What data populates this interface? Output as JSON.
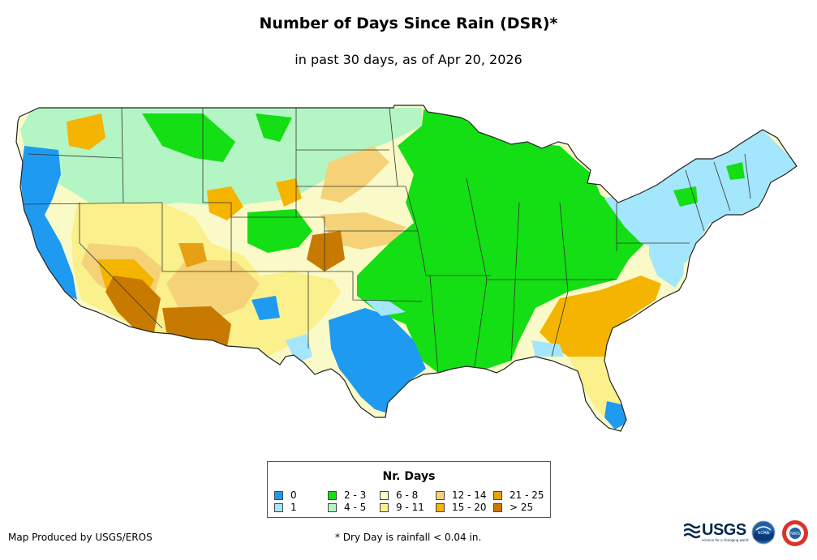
{
  "title": "Number of Days Since Rain (DSR)*",
  "subtitle": "in past 30 days, as of Apr 20, 2026",
  "legend": {
    "title": "Nr. Days",
    "items": [
      {
        "label": "0",
        "color": "#1e9bf0"
      },
      {
        "label": "1",
        "color": "#a4e6fb"
      },
      {
        "label": "2 - 3",
        "color": "#14de14"
      },
      {
        "label": "4 - 5",
        "color": "#b4f5c4"
      },
      {
        "label": "6 - 8",
        "color": "#fafac8"
      },
      {
        "label": "9 - 11",
        "color": "#faf08c"
      },
      {
        "label": "12 - 14",
        "color": "#f5d278"
      },
      {
        "label": "15 - 20",
        "color": "#f5b400"
      },
      {
        "label": "21 - 25",
        "color": "#e6a014"
      },
      {
        "label": "> 25",
        "color": "#c87a00"
      }
    ]
  },
  "footer": {
    "produced_by": "Map Produced by USGS/EROS",
    "note": "* Dry Day is rainfall < 0.04 in."
  },
  "logos": {
    "usgs_text": "USGS",
    "usgs_tagline": "science for a changing world",
    "noaa_text": "NOAA",
    "nws_text": "NWS"
  }
}
